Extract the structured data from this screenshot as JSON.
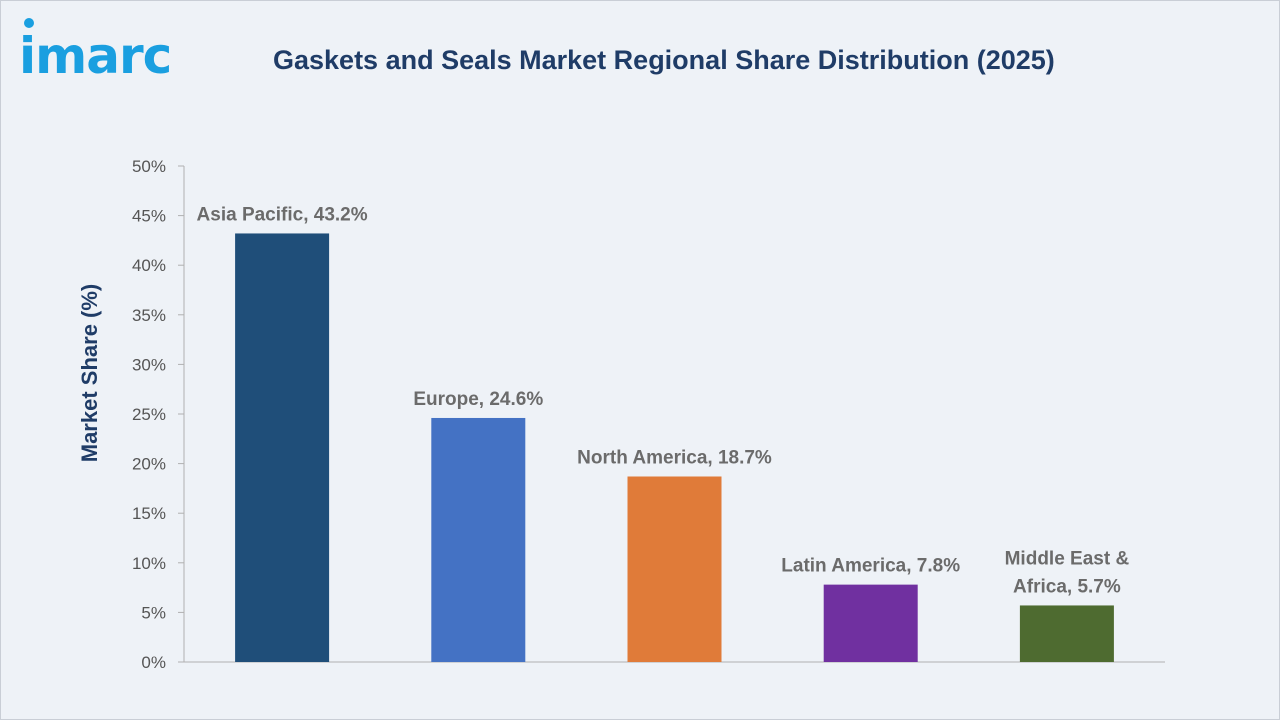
{
  "brand": {
    "name": "imarc",
    "color": "#1a9fe0"
  },
  "chart_data": {
    "type": "bar",
    "title": "Gaskets and Seals Market Regional Share Distribution (2025)",
    "xlabel": "",
    "ylabel": "Market Share (%)",
    "ylim": [
      0,
      50
    ],
    "yticks": [
      "0%",
      "5%",
      "10%",
      "15%",
      "20%",
      "25%",
      "30%",
      "35%",
      "40%",
      "45%",
      "50%"
    ],
    "grid": false,
    "categories": [
      "Asia Pacific",
      "Europe",
      "North America",
      "Latin America",
      "Middle East & Africa"
    ],
    "values": [
      43.2,
      24.6,
      18.7,
      7.8,
      5.7
    ],
    "labels": [
      [
        "Asia Pacific, 43.2%"
      ],
      [
        "Europe, 24.6%"
      ],
      [
        "North America, 18.7%"
      ],
      [
        "Latin America, 7.8%"
      ],
      [
        "Middle East &",
        "Africa, 5.7%"
      ]
    ],
    "colors": [
      "#1f4e79",
      "#4472c4",
      "#e07b39",
      "#7030a0",
      "#4e6b30"
    ]
  }
}
